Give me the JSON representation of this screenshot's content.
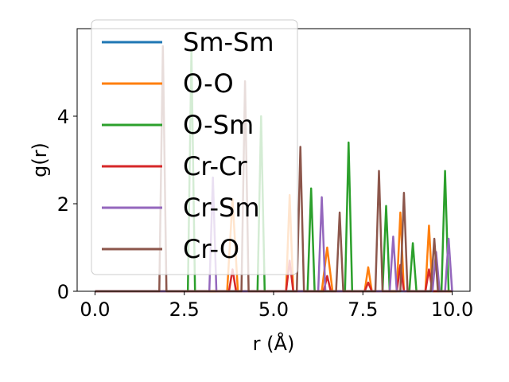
{
  "chart_data": {
    "type": "line",
    "xlabel": "r (Å)",
    "ylabel": "g(r)",
    "xlim": [
      -0.5,
      10.5
    ],
    "ylim": [
      0,
      6.0
    ],
    "xticks": [
      0.0,
      2.5,
      5.0,
      7.5,
      10.0
    ],
    "xtick_labels": [
      "0.0",
      "2.5",
      "5.0",
      "7.5",
      "10.0"
    ],
    "yticks": [
      0,
      2,
      4
    ],
    "ytick_labels": [
      "0",
      "2",
      "4"
    ],
    "grid": false,
    "legend_position": "top-left",
    "series": [
      {
        "name": "Sm-Sm",
        "color": "#1f77b4",
        "points": [
          [
            0,
            0
          ],
          [
            10,
            0
          ]
        ]
      },
      {
        "name": "O-O",
        "color": "#ff7f0e",
        "points": [
          [
            0,
            0
          ],
          [
            3.7,
            0
          ],
          [
            3.85,
            2.1
          ],
          [
            4.0,
            0
          ],
          [
            5.35,
            0
          ],
          [
            5.45,
            2.2
          ],
          [
            5.55,
            0
          ],
          [
            6.35,
            0
          ],
          [
            6.5,
            1.0
          ],
          [
            6.65,
            0
          ],
          [
            7.55,
            0
          ],
          [
            7.65,
            0.55
          ],
          [
            7.75,
            0
          ],
          [
            8.45,
            0
          ],
          [
            8.55,
            1.8
          ],
          [
            8.65,
            0
          ],
          [
            9.25,
            0
          ],
          [
            9.35,
            1.5
          ],
          [
            9.45,
            0
          ],
          [
            10,
            0
          ]
        ]
      },
      {
        "name": "O-Sm",
        "color": "#2ca02c",
        "points": [
          [
            0,
            0
          ],
          [
            2.6,
            0
          ],
          [
            2.7,
            5.5
          ],
          [
            2.8,
            0
          ],
          [
            4.55,
            0
          ],
          [
            4.65,
            4.0
          ],
          [
            4.75,
            0
          ],
          [
            5.95,
            0
          ],
          [
            6.05,
            2.35
          ],
          [
            6.15,
            0
          ],
          [
            7.0,
            0
          ],
          [
            7.1,
            3.4
          ],
          [
            7.2,
            0
          ],
          [
            8.05,
            0
          ],
          [
            8.15,
            1.95
          ],
          [
            8.25,
            0
          ],
          [
            8.8,
            0
          ],
          [
            8.9,
            1.1
          ],
          [
            9.0,
            0
          ],
          [
            9.7,
            0
          ],
          [
            9.8,
            2.75
          ],
          [
            9.9,
            0
          ],
          [
            10,
            0
          ]
        ]
      },
      {
        "name": "Cr-Cr",
        "color": "#d62728",
        "points": [
          [
            0,
            0
          ],
          [
            3.75,
            0
          ],
          [
            3.85,
            0.5
          ],
          [
            3.95,
            0
          ],
          [
            5.35,
            0
          ],
          [
            5.45,
            0.7
          ],
          [
            5.55,
            0
          ],
          [
            6.4,
            0
          ],
          [
            6.5,
            0.35
          ],
          [
            6.6,
            0
          ],
          [
            7.55,
            0
          ],
          [
            7.65,
            0.2
          ],
          [
            7.75,
            0
          ],
          [
            8.45,
            0
          ],
          [
            8.55,
            0.6
          ],
          [
            8.65,
            0
          ],
          [
            9.25,
            0
          ],
          [
            9.35,
            0.5
          ],
          [
            9.45,
            0
          ],
          [
            10,
            0
          ]
        ]
      },
      {
        "name": "Cr-Sm",
        "color": "#9467bd",
        "points": [
          [
            0,
            0
          ],
          [
            3.2,
            0
          ],
          [
            3.3,
            2.6
          ],
          [
            3.4,
            0
          ],
          [
            6.25,
            0
          ],
          [
            6.35,
            2.15
          ],
          [
            6.45,
            0
          ],
          [
            8.25,
            0
          ],
          [
            8.35,
            1.25
          ],
          [
            8.45,
            0
          ],
          [
            9.45,
            0
          ],
          [
            9.55,
            0.9
          ],
          [
            9.65,
            0
          ],
          [
            9.8,
            0
          ],
          [
            9.9,
            1.2
          ],
          [
            10,
            0
          ]
        ]
      },
      {
        "name": "Cr-O",
        "color": "#8c564b",
        "points": [
          [
            0,
            0
          ],
          [
            1.8,
            0
          ],
          [
            1.9,
            5.6
          ],
          [
            2.0,
            0
          ],
          [
            4.1,
            0
          ],
          [
            4.2,
            4.8
          ],
          [
            4.3,
            0
          ],
          [
            5.65,
            0
          ],
          [
            5.75,
            3.3
          ],
          [
            5.85,
            0
          ],
          [
            6.75,
            0
          ],
          [
            6.85,
            1.8
          ],
          [
            6.95,
            0
          ],
          [
            7.85,
            0
          ],
          [
            7.95,
            2.75
          ],
          [
            8.05,
            0
          ],
          [
            8.55,
            0
          ],
          [
            8.65,
            2.25
          ],
          [
            8.75,
            0
          ],
          [
            9.4,
            0
          ],
          [
            9.5,
            1.2
          ],
          [
            9.6,
            0
          ],
          [
            10,
            0
          ]
        ]
      }
    ]
  }
}
